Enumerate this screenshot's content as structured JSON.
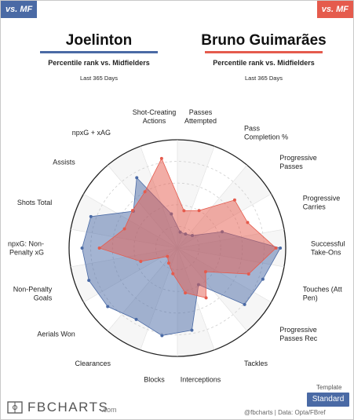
{
  "tags": {
    "left": "vs. MF",
    "right": "vs. MF"
  },
  "players": [
    {
      "name": "Joelinton",
      "subtitle": "Percentile rank vs. Midfielders",
      "period": "Last 365 Days",
      "color": "#4a6aa5"
    },
    {
      "name": "Bruno Guimarães",
      "subtitle": "Percentile rank vs. Midfielders",
      "period": "Last 365 Days",
      "color": "#e55b4d"
    }
  ],
  "chart_data": {
    "type": "radar",
    "scale": [
      0,
      100
    ],
    "grid_rings": [
      20,
      40,
      60,
      80,
      100
    ],
    "axes": [
      {
        "label": [
          "Passes",
          "Attempted"
        ]
      },
      {
        "label": [
          "Pass",
          "Completion %"
        ]
      },
      {
        "label": [
          "Progressive",
          "Passes"
        ]
      },
      {
        "label": [
          "Progressive",
          "Carries"
        ]
      },
      {
        "label": [
          "Successful",
          "Take-Ons"
        ]
      },
      {
        "label": [
          "Touches (Att",
          "Pen)"
        ]
      },
      {
        "label": [
          "Progressive",
          "Passes Rec"
        ]
      },
      {
        "label": [
          "Tackles"
        ]
      },
      {
        "label": [
          "Interceptions"
        ]
      },
      {
        "label": [
          "Blocks"
        ]
      },
      {
        "label": [
          "Clearances"
        ]
      },
      {
        "label": [
          "Aerials Won"
        ]
      },
      {
        "label": [
          "Non-Penalty",
          "Goals"
        ]
      },
      {
        "label": [
          "npxG: Non-",
          "Penalty xG"
        ]
      },
      {
        "label": [
          "Shots Total"
        ]
      },
      {
        "label": [
          "Assists"
        ]
      },
      {
        "label": [
          "npxG + xAG"
        ]
      },
      {
        "label": [
          "Shot-Creating",
          "Actions"
        ]
      }
    ],
    "series": [
      {
        "name": "Joelinton",
        "color": "#4a6aa5",
        "values": [
          15,
          15,
          18,
          44,
          95,
          84,
          81,
          39,
          77,
          82,
          76,
          84,
          87,
          88,
          85,
          53,
          75,
          32
        ]
      },
      {
        "name": "Bruno Guimarães",
        "color": "#e55b4d",
        "values": [
          35,
          40,
          69,
          69,
          91,
          70,
          34,
          53,
          42,
          24,
          16,
          12,
          36,
          72,
          52,
          54,
          60,
          84
        ]
      }
    ]
  },
  "footer": {
    "template_label": "Template",
    "template_value": "Standard",
    "logo": "FBCHARTS",
    "logo_domain": ".com",
    "credit": "@fbcharts  |  Data: Opta/FBref"
  }
}
